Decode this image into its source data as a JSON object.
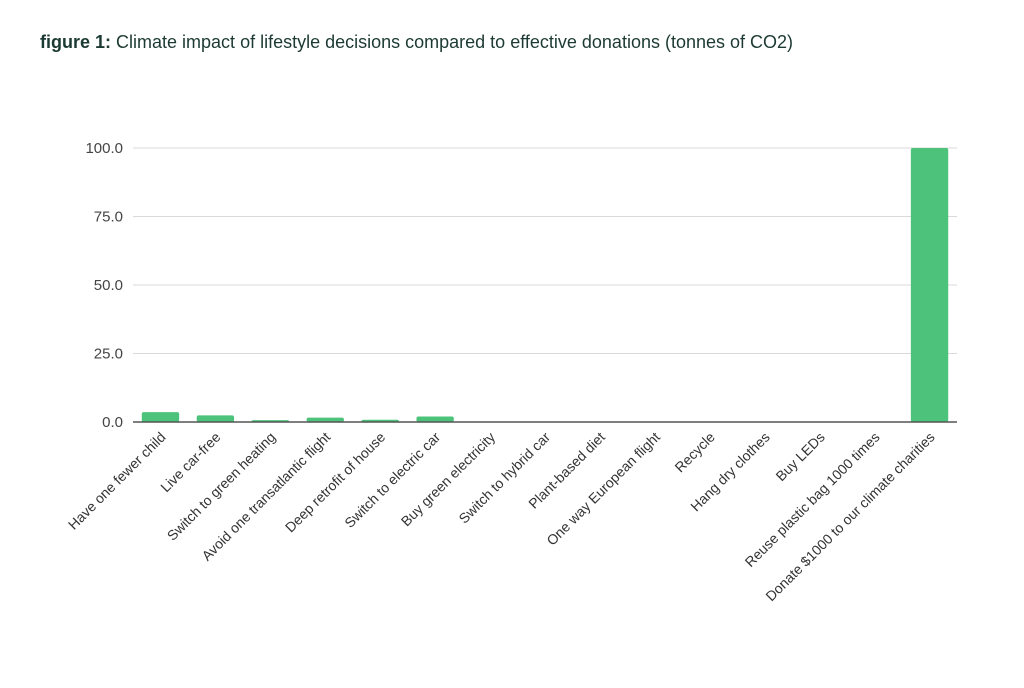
{
  "chart_data": {
    "type": "bar",
    "title_prefix": "figure 1:",
    "title": "Climate impact of lifestyle decisions compared to effective donations (tonnes of CO2)",
    "xlabel": "",
    "ylabel": "",
    "ylim": [
      0,
      100
    ],
    "yticks": [
      "0.0",
      "25.0",
      "50.0",
      "75.0",
      "100.0"
    ],
    "grid": true,
    "bar_color": "#4cc27a",
    "categories": [
      "Have one fewer child",
      "Live car-free",
      "Switch to green heating",
      "Avoid one transatlantic flight",
      "Deep retrofit of house",
      "Switch to electric car",
      "Buy green electricity",
      "Switch to hybrid car",
      "Plant-based diet",
      "One way European flight",
      "Recycle",
      "Hang dry clothes",
      "Buy LEDs",
      "Reuse plastic bag 1000 times",
      "Donate $1000 to our climate charities"
    ],
    "values": [
      3.6,
      2.4,
      0.7,
      1.6,
      0.8,
      2.0,
      0.1,
      0.1,
      0.1,
      0.1,
      0.1,
      0.1,
      0.1,
      0.1,
      100
    ]
  }
}
